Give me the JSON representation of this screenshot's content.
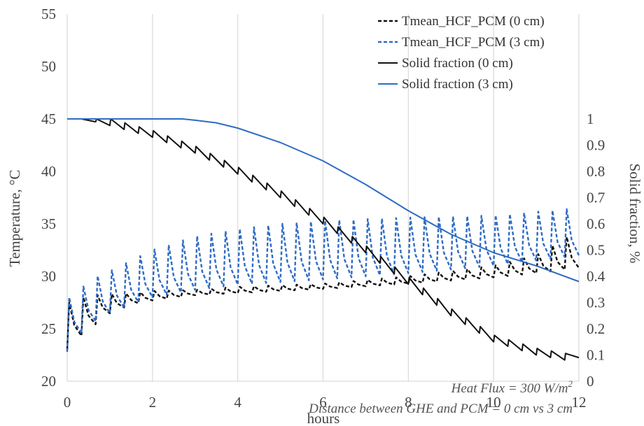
{
  "chart_data": {
    "type": "line",
    "xlabel": "hours",
    "ylabel_left": "Temperature, °C",
    "ylabel_right": "Solid fraction, %",
    "xlim": [
      0,
      12
    ],
    "ylim_left": [
      20,
      55
    ],
    "ylim_right": [
      0,
      1.4
    ],
    "x_ticks": [
      "0",
      "2",
      "4",
      "6",
      "8",
      "10",
      "12"
    ],
    "y_left_ticks": [
      "20",
      "25",
      "30",
      "35",
      "40",
      "45",
      "50",
      "55"
    ],
    "y_right_ticks": [
      "0",
      "0.1",
      "0.2",
      "0.3",
      "0.4",
      "0.5",
      "0.6",
      "0.7",
      "0.8",
      "0.9",
      "1"
    ],
    "grid": "vertical",
    "legend_position": "top-right",
    "annotations": [
      {
        "text": "Heat Flux = 300 W/m",
        "sup": "2"
      },
      {
        "text": "Distance between GHE and PCM = 0 cm vs 3 cm",
        "sup": ""
      }
    ],
    "series": [
      {
        "name": "Tmean_HCF_PCM (0 cm)",
        "axis": "left",
        "color": "#111111",
        "style": "dashed",
        "sawtooth": {
          "cycles": 36,
          "start": 23.0,
          "peaks": [
            [
              0.05,
              27.5
            ],
            [
              0.37,
              28.0
            ],
            [
              0.69,
              28.2
            ],
            [
              1.01,
              28.3
            ],
            [
              1.5,
              28.4
            ],
            [
              2.0,
              28.6
            ],
            [
              3.0,
              28.7
            ],
            [
              4.0,
              29.0
            ],
            [
              6.0,
              29.3
            ],
            [
              8.0,
              30.0
            ],
            [
              10.0,
              31.0
            ],
            [
              11.0,
              32.0
            ],
            [
              11.4,
              33.0
            ],
            [
              11.7,
              33.8
            ],
            [
              12.0,
              33.0
            ]
          ],
          "troughs": [
            [
              0.05,
              23.0
            ],
            [
              0.37,
              24.5
            ],
            [
              0.69,
              25.5
            ],
            [
              1.01,
              26.5
            ],
            [
              1.5,
              27.3
            ],
            [
              2.0,
              27.7
            ],
            [
              3.0,
              28.2
            ],
            [
              4.0,
              28.4
            ],
            [
              6.0,
              28.8
            ],
            [
              8.0,
              29.3
            ],
            [
              10.0,
              29.9
            ],
            [
              11.0,
              30.3
            ],
            [
              12.0,
              30.8
            ]
          ]
        }
      },
      {
        "name": "Tmean_HCF_PCM (3 cm)",
        "axis": "left",
        "color": "#2E6BC4",
        "style": "dashed",
        "sawtooth": {
          "cycles": 36,
          "start": 22.8,
          "peaks": [
            [
              0.05,
              28.0
            ],
            [
              0.37,
              29.0
            ],
            [
              0.69,
              30.0
            ],
            [
              1.01,
              30.5
            ],
            [
              1.5,
              31.5
            ],
            [
              2.0,
              32.5
            ],
            [
              3.0,
              33.8
            ],
            [
              4.0,
              34.5
            ],
            [
              5.0,
              35.0
            ],
            [
              6.0,
              35.3
            ],
            [
              8.0,
              35.6
            ],
            [
              10.0,
              35.8
            ],
            [
              12.0,
              36.5
            ]
          ],
          "troughs": [
            [
              0.05,
              22.8
            ],
            [
              0.37,
              24.8
            ],
            [
              0.69,
              25.8
            ],
            [
              1.01,
              26.5
            ],
            [
              1.5,
              27.3
            ],
            [
              2.0,
              28.0
            ],
            [
              3.0,
              28.7
            ],
            [
              4.0,
              29.2
            ],
            [
              6.0,
              29.7
            ],
            [
              8.0,
              30.3
            ],
            [
              10.0,
              31.0
            ],
            [
              12.0,
              32.0
            ]
          ]
        }
      },
      {
        "name": "Solid fraction (0 cm)",
        "axis": "right",
        "color": "#111111",
        "style": "solid",
        "sawtooth_steps": {
          "cycles": 36,
          "start": 1.0,
          "levels": [
            [
              0.0,
              1.0
            ],
            [
              0.4,
              1.0
            ],
            [
              1.0,
              0.975
            ],
            [
              2.0,
              0.93
            ],
            [
              3.0,
              0.87
            ],
            [
              4.0,
              0.79
            ],
            [
              5.0,
              0.7
            ],
            [
              6.0,
              0.6
            ],
            [
              7.0,
              0.49
            ],
            [
              8.0,
              0.37
            ],
            [
              9.0,
              0.25
            ],
            [
              10.0,
              0.15
            ],
            [
              11.0,
              0.1
            ],
            [
              11.7,
              0.08
            ],
            [
              12.0,
              0.09
            ]
          ],
          "spike": 0.025
        }
      },
      {
        "name": "Solid fraction (3 cm)",
        "axis": "right",
        "color": "#2E6BC4",
        "style": "solid",
        "points": [
          [
            0,
            1.0
          ],
          [
            1,
            1.0
          ],
          [
            2,
            1.0
          ],
          [
            2.7,
            1.0
          ],
          [
            3,
            0.995
          ],
          [
            3.5,
            0.985
          ],
          [
            4,
            0.965
          ],
          [
            5,
            0.91
          ],
          [
            6,
            0.84
          ],
          [
            7,
            0.75
          ],
          [
            8,
            0.65
          ],
          [
            9,
            0.56
          ],
          [
            10,
            0.49
          ],
          [
            11,
            0.44
          ],
          [
            12,
            0.38
          ]
        ]
      }
    ]
  }
}
